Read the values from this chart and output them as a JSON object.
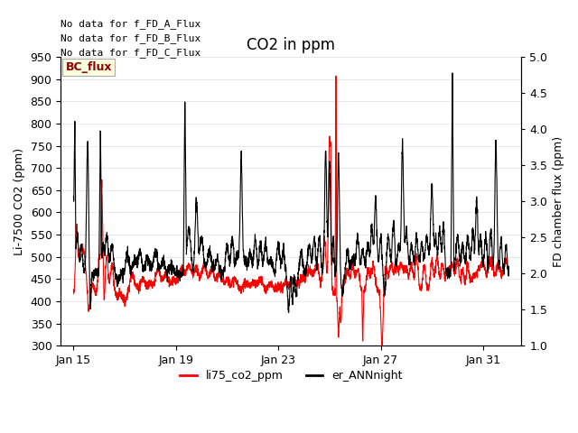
{
  "title": "CO2 in ppm",
  "ylabel_left": "Li-7500 CO2 (ppm)",
  "ylabel_right": "FD chamber flux (ppm)",
  "xlim_days": [
    14.5,
    32.5
  ],
  "ylim_left": [
    300,
    950
  ],
  "ylim_right": [
    1.0,
    5.0
  ],
  "yticks_left": [
    300,
    350,
    400,
    450,
    500,
    550,
    600,
    650,
    700,
    750,
    800,
    850,
    900,
    950
  ],
  "yticks_right": [
    1.0,
    1.5,
    2.0,
    2.5,
    3.0,
    3.5,
    4.0,
    4.5,
    5.0
  ],
  "xtick_labels": [
    "Jan 15",
    "Jan 19",
    "Jan 23",
    "Jan 27",
    "Jan 31"
  ],
  "xtick_positions": [
    15,
    19,
    23,
    27,
    31
  ],
  "legend_entries": [
    "li75_co2_ppm",
    "er_ANNnight"
  ],
  "legend_colors": [
    "red",
    "black"
  ],
  "annotations": [
    "No data for f_FD_A_Flux",
    "No data for f_FD_B_Flux",
    "No data for f_FD_C_Flux"
  ],
  "annotation_box": "BC_flux",
  "background_color": "#ffffff",
  "grid_color": "#e8e8e8",
  "title_fontsize": 12,
  "axis_fontsize": 9,
  "tick_fontsize": 9,
  "annot_fontsize": 8
}
